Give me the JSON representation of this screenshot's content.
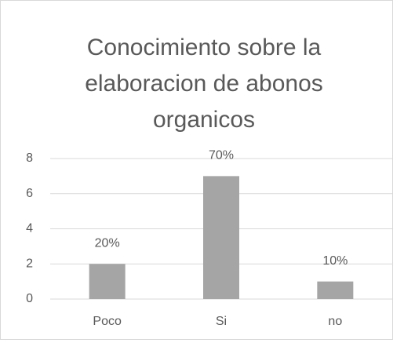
{
  "chart_data": {
    "type": "bar",
    "title": "Conocimiento sobre la elaboracion de abonos organicos",
    "categories": [
      "Poco",
      "Si",
      "no"
    ],
    "values": [
      2,
      7,
      1
    ],
    "value_labels": [
      "20%",
      "70%",
      "10%"
    ],
    "color": "#a5a5a5",
    "ylim": [
      0,
      8
    ],
    "yticks": [
      0,
      2,
      4,
      6,
      8
    ],
    "grid": true
  }
}
